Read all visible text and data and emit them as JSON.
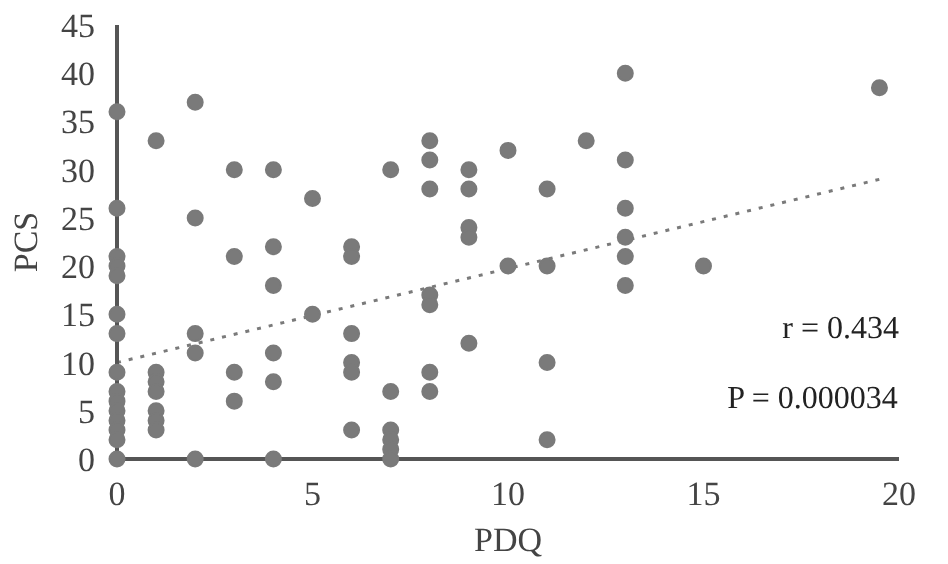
{
  "chart_data": {
    "type": "scatter",
    "xlabel": "PDQ",
    "ylabel": "PCS",
    "xlim": [
      0,
      20
    ],
    "ylim": [
      0,
      45
    ],
    "xticks": [
      0,
      5,
      10,
      15,
      20
    ],
    "yticks": [
      0,
      5,
      10,
      15,
      20,
      25,
      30,
      35,
      40,
      45
    ],
    "grid": false,
    "marker": "circle",
    "annotations": [
      "r = 0.434",
      "P = 0.000034"
    ],
    "series": [
      {
        "color": "#7a7a7a",
        "x": [
          0,
          0,
          0,
          0,
          0,
          0,
          0,
          0,
          0,
          0,
          0,
          0,
          0,
          0,
          0,
          1,
          1,
          1,
          1,
          1,
          1,
          1,
          2,
          2,
          2,
          2,
          2,
          3,
          3,
          3,
          3,
          4,
          4,
          4,
          4,
          4,
          4,
          5,
          5,
          6,
          6,
          6,
          6,
          6,
          6,
          7,
          7,
          7,
          7,
          7,
          7,
          8,
          8,
          8,
          8,
          8,
          8,
          8,
          9,
          9,
          9,
          9,
          9,
          10,
          10,
          11,
          11,
          11,
          11,
          12,
          13,
          13,
          13,
          13,
          13,
          13,
          15,
          19.5
        ],
        "values": [
          36,
          26,
          21,
          20,
          19,
          15,
          13,
          9,
          7,
          6,
          5,
          4,
          3,
          2,
          0,
          33,
          9,
          8,
          7,
          5,
          4,
          3,
          37,
          25,
          13,
          11,
          0,
          30,
          21,
          9,
          6,
          30,
          22,
          18,
          11,
          8,
          0,
          27,
          15,
          22,
          21,
          13,
          10,
          9,
          3,
          30,
          7,
          3,
          2,
          1,
          0,
          33,
          31,
          28,
          17,
          16,
          9,
          7,
          30,
          28,
          24,
          23,
          12,
          32,
          20,
          28,
          20,
          10,
          2,
          33,
          40,
          31,
          26,
          23,
          21,
          18,
          20,
          38.5
        ]
      },
      {
        "type": "line",
        "color": "#7a7a7a",
        "line_style": "dotted",
        "marker": "none",
        "x": [
          0,
          19.5
        ],
        "values": [
          10,
          29
        ]
      }
    ]
  }
}
